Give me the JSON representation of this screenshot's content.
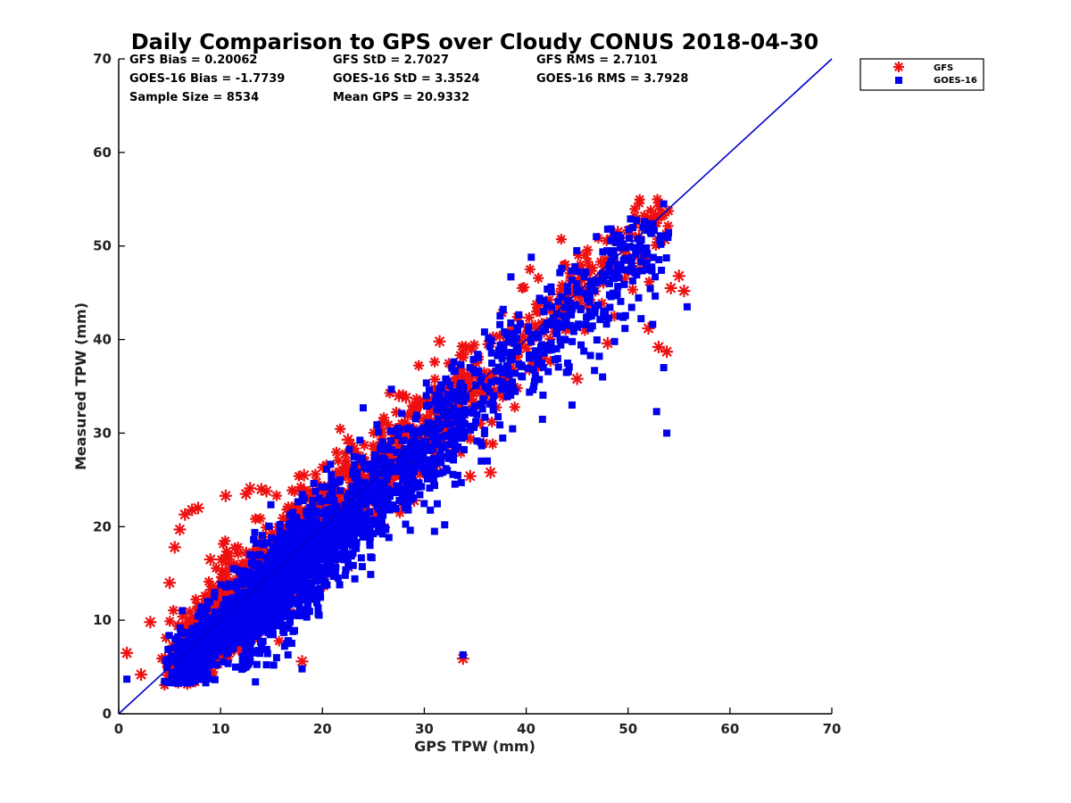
{
  "chart_data": {
    "type": "scatter",
    "title": "Daily Comparison to GPS over Cloudy CONUS 2018-04-30",
    "xlabel": "GPS TPW (mm)",
    "ylabel": "Measured TPW (mm)",
    "xlim": [
      0,
      70
    ],
    "ylim": [
      0,
      70
    ],
    "xticks": [
      0,
      10,
      20,
      30,
      40,
      50,
      60,
      70
    ],
    "yticks": [
      0,
      10,
      20,
      30,
      40,
      50,
      60,
      70
    ],
    "grid": false,
    "legend_position": "outside-top-right",
    "stats": [
      [
        "GFS Bias = 0.20062",
        "GFS StD = 2.7027",
        "GFS RMS = 2.7101"
      ],
      [
        "GOES-16 Bias = -1.7739",
        "GOES-16 StD = 3.3524",
        "GOES-16 RMS = 3.7928"
      ],
      [
        "Sample Size = 8534",
        "Mean GPS = 20.9332",
        ""
      ]
    ],
    "reference_line": {
      "x": [
        0,
        70
      ],
      "y": [
        0,
        70
      ],
      "color": "#0000cc"
    },
    "series": [
      {
        "name": "GFS",
        "marker": "asterisk",
        "color": "#ee1111",
        "outliers": [
          [
            0.8,
            6.5
          ],
          [
            2.2,
            4.2
          ],
          [
            3.1,
            9.8
          ],
          [
            5.0,
            14.0
          ],
          [
            5.5,
            17.8
          ],
          [
            6.0,
            19.7
          ],
          [
            6.5,
            21.3
          ],
          [
            7.2,
            21.8
          ],
          [
            7.8,
            22.0
          ],
          [
            9.0,
            16.5
          ],
          [
            10.5,
            23.3
          ],
          [
            12.5,
            23.5
          ],
          [
            12.9,
            24.1
          ],
          [
            14.0,
            24.0
          ],
          [
            14.5,
            23.8
          ],
          [
            18.0,
            5.6
          ],
          [
            18.2,
            25.5
          ],
          [
            22.5,
            29.3
          ],
          [
            27.5,
            34.0
          ],
          [
            28.2,
            33.8
          ],
          [
            29.0,
            22.8
          ],
          [
            31.5,
            39.8
          ],
          [
            33.8,
            5.9
          ],
          [
            34.5,
            25.4
          ],
          [
            36.5,
            25.8
          ],
          [
            45.0,
            35.8
          ],
          [
            48.0,
            39.6
          ],
          [
            49.0,
            51.5
          ],
          [
            52.0,
            41.2
          ],
          [
            53.0,
            39.2
          ],
          [
            53.8,
            38.7
          ],
          [
            53.6,
            50.7
          ],
          [
            54.2,
            45.5
          ],
          [
            55.0,
            46.8
          ],
          [
            55.5,
            45.2
          ]
        ]
      },
      {
        "name": "GOES-16",
        "marker": "square",
        "color": "#0000ee",
        "outliers": [
          [
            0.8,
            3.7
          ],
          [
            18.0,
            4.8
          ],
          [
            33.8,
            6.3
          ],
          [
            38.5,
            46.7
          ],
          [
            40.5,
            48.8
          ],
          [
            48.0,
            51.8
          ],
          [
            49.5,
            50.2
          ],
          [
            51.5,
            52.0
          ],
          [
            53.5,
            54.5
          ],
          [
            53.5,
            37.0
          ],
          [
            53.8,
            30.0
          ],
          [
            52.8,
            32.3
          ],
          [
            47.5,
            36.0
          ],
          [
            44.5,
            33.0
          ],
          [
            32.0,
            20.2
          ],
          [
            31.0,
            19.5
          ],
          [
            24.0,
            32.7
          ],
          [
            15.5,
            6.0
          ],
          [
            22.5,
            20.2
          ],
          [
            55.8,
            43.5
          ]
        ]
      }
    ]
  }
}
